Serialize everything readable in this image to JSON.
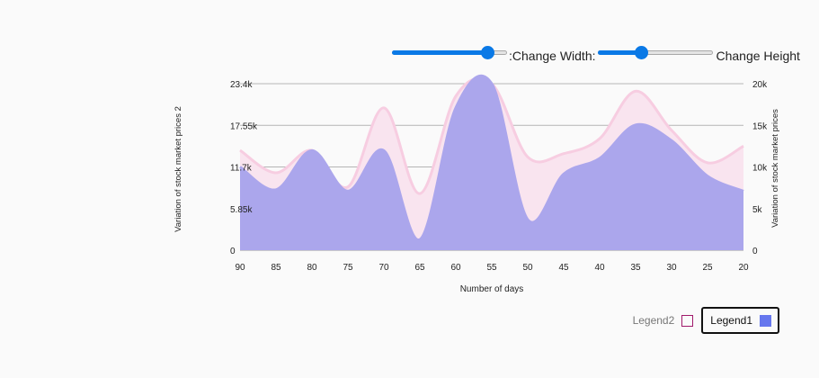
{
  "controls": {
    "width_label": ":Change Width:",
    "height_label": "Change Height",
    "width_level": 0.83,
    "height_level": 0.38
  },
  "legend": {
    "items": [
      {
        "label": "Legend2",
        "color": "#a0196b",
        "filled": false,
        "active": false
      },
      {
        "label": "Legend1",
        "color": "#6677ee",
        "filled": true,
        "active": true
      }
    ]
  },
  "chart_data": {
    "type": "area",
    "xlabel": "Number of days",
    "ylabel_left": "Variation of stock market prices 2",
    "ylabel_right": "Variation of stock market prices",
    "x": [
      90,
      85,
      80,
      75,
      70,
      65,
      60,
      55,
      50,
      45,
      40,
      35,
      30,
      25,
      20
    ],
    "x_ticks": [
      "90",
      "85",
      "80",
      "75",
      "70",
      "65",
      "60",
      "55",
      "50",
      "45",
      "40",
      "35",
      "30",
      "25",
      "20"
    ],
    "x_reversed": true,
    "ylim_left": [
      0,
      23400
    ],
    "yticks_left": [
      "0",
      "5.85k",
      "11.7k",
      "17.55k",
      "23.4k"
    ],
    "ylim_right": [
      0,
      20000
    ],
    "yticks_right": [
      "0",
      "5k",
      "10k",
      "15k",
      "20k"
    ],
    "grid": true,
    "series": [
      {
        "name": "Legend2",
        "axis": "right",
        "fill": "#f9e4ef",
        "stroke": "#f7cde1",
        "values": [
          12000,
          9300,
          12000,
          7600,
          17100,
          6800,
          18500,
          20000,
          11200,
          11600,
          13400,
          19100,
          14400,
          10500,
          12500
        ]
      },
      {
        "name": "Legend1",
        "axis": "left",
        "fill": "#aba6ec",
        "stroke": "#aba6ec",
        "values": [
          11700,
          8500,
          14000,
          8300,
          14000,
          1500,
          20000,
          23400,
          4300,
          10700,
          12900,
          17600,
          15400,
          10400,
          8300
        ]
      }
    ]
  }
}
